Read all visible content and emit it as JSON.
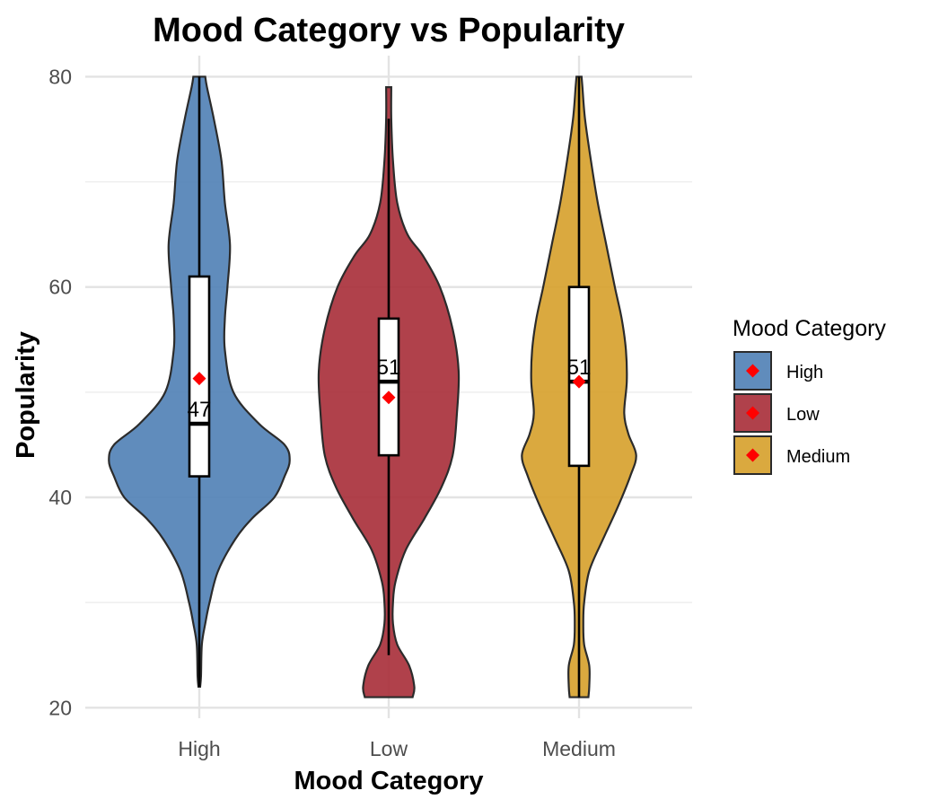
{
  "chart_data": {
    "type": "violin",
    "title": "Mood Category vs Popularity",
    "xlabel": "Mood Category",
    "ylabel": "Popularity",
    "categories": [
      "High",
      "Low",
      "Medium"
    ],
    "ylim": [
      19,
      82
    ],
    "yticks": [
      20,
      40,
      60,
      80
    ],
    "grid": true,
    "legend": {
      "title": "Mood Category",
      "position": "right",
      "entries": [
        "High",
        "Low",
        "Medium"
      ]
    },
    "colors": {
      "High": "#4f7fb5",
      "Low": "#a72c37",
      "Medium": "#d6a02a",
      "mean_marker": "#ff0000"
    },
    "series": [
      {
        "category": "High",
        "box": {
          "q1": 42,
          "median": 47,
          "q3": 61,
          "whisker_low": 22,
          "whisker_high": 80
        },
        "mean": 51.3,
        "median_label": "47",
        "density": [
          [
            22,
            0.01
          ],
          [
            23,
            0.02
          ],
          [
            26,
            0.03
          ],
          [
            28,
            0.07
          ],
          [
            30,
            0.12
          ],
          [
            33,
            0.22
          ],
          [
            36,
            0.42
          ],
          [
            38,
            0.62
          ],
          [
            40,
            0.88
          ],
          [
            42,
            1.0
          ],
          [
            43.5,
            1.06
          ],
          [
            45,
            1.0
          ],
          [
            47,
            0.7
          ],
          [
            50,
            0.4
          ],
          [
            54,
            0.3
          ],
          [
            57,
            0.3
          ],
          [
            60,
            0.33
          ],
          [
            64,
            0.36
          ],
          [
            68,
            0.3
          ],
          [
            72,
            0.26
          ],
          [
            76,
            0.17
          ],
          [
            79,
            0.09
          ],
          [
            80,
            0.07
          ]
        ]
      },
      {
        "category": "Low",
        "box": {
          "q1": 44,
          "median": 51,
          "q3": 57,
          "whisker_low": 25,
          "whisker_high": 76
        },
        "mean": 49.5,
        "median_label": "51",
        "density": [
          [
            21,
            0.28
          ],
          [
            22,
            0.3
          ],
          [
            24,
            0.24
          ],
          [
            26,
            0.1
          ],
          [
            28,
            0.05
          ],
          [
            30,
            0.05
          ],
          [
            32,
            0.08
          ],
          [
            35,
            0.2
          ],
          [
            38,
            0.42
          ],
          [
            41,
            0.62
          ],
          [
            44,
            0.75
          ],
          [
            48,
            0.8
          ],
          [
            52,
            0.82
          ],
          [
            56,
            0.75
          ],
          [
            60,
            0.6
          ],
          [
            63,
            0.4
          ],
          [
            65,
            0.22
          ],
          [
            68,
            0.1
          ],
          [
            72,
            0.05
          ],
          [
            76,
            0.03
          ],
          [
            79,
            0.03
          ]
        ]
      },
      {
        "category": "Medium",
        "box": {
          "q1": 43,
          "median": 51,
          "q3": 60,
          "whisker_low": 21,
          "whisker_high": 80
        },
        "mean": 51,
        "median_label": "51",
        "density": [
          [
            21,
            0.11
          ],
          [
            22,
            0.12
          ],
          [
            24,
            0.12
          ],
          [
            26,
            0.06
          ],
          [
            28,
            0.05
          ],
          [
            30,
            0.06
          ],
          [
            33,
            0.12
          ],
          [
            36,
            0.28
          ],
          [
            39,
            0.45
          ],
          [
            42,
            0.6
          ],
          [
            44,
            0.67
          ],
          [
            46,
            0.58
          ],
          [
            48,
            0.53
          ],
          [
            51,
            0.56
          ],
          [
            54,
            0.55
          ],
          [
            57,
            0.5
          ],
          [
            60,
            0.42
          ],
          [
            64,
            0.32
          ],
          [
            68,
            0.22
          ],
          [
            72,
            0.14
          ],
          [
            76,
            0.07
          ],
          [
            79,
            0.04
          ],
          [
            80,
            0.03
          ]
        ]
      }
    ]
  }
}
